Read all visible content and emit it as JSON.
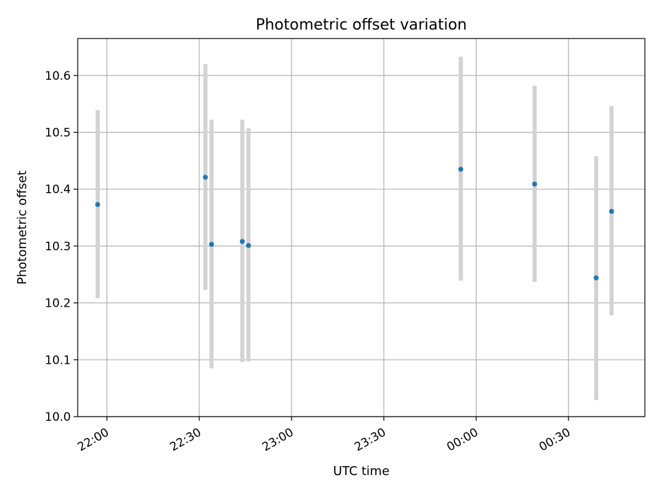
{
  "chart_data": {
    "type": "scatter",
    "title": "Photometric offset variation",
    "xlabel": "UTC time",
    "ylabel": "Photometric offset",
    "ylim": [
      10.0,
      10.665
    ],
    "xlim": [
      "21:50:30",
      "24:54:50"
    ],
    "grid": true,
    "x_ticks": [
      {
        "value": "22:00",
        "label": "22:00"
      },
      {
        "value": "22:30",
        "label": "22:30"
      },
      {
        "value": "23:00",
        "label": "23:00"
      },
      {
        "value": "23:30",
        "label": "23:30"
      },
      {
        "value": "24:00",
        "label": "00:00"
      },
      {
        "value": "24:30",
        "label": "00:30"
      }
    ],
    "y_ticks": [
      "10.0",
      "10.1",
      "10.2",
      "10.3",
      "10.4",
      "10.5",
      "10.6"
    ],
    "points": [
      {
        "x": "21:57",
        "y": 10.373,
        "err_low": 10.208,
        "err_high": 10.539
      },
      {
        "x": "22:32",
        "y": 10.421,
        "err_low": 10.223,
        "err_high": 10.62
      },
      {
        "x": "22:34",
        "y": 10.303,
        "err_low": 10.085,
        "err_high": 10.522
      },
      {
        "x": "22:44",
        "y": 10.308,
        "err_low": 10.096,
        "err_high": 10.522
      },
      {
        "x": "22:46",
        "y": 10.301,
        "err_low": 10.097,
        "err_high": 10.507
      },
      {
        "x": "23:55",
        "y": 10.435,
        "err_low": 10.239,
        "err_high": 10.633
      },
      {
        "x": "24:19",
        "y": 10.409,
        "err_low": 10.237,
        "err_high": 10.582
      },
      {
        "x": "24:39",
        "y": 10.244,
        "err_low": 10.029,
        "err_high": 10.458
      },
      {
        "x": "24:44",
        "y": 10.361,
        "err_low": 10.178,
        "err_high": 10.546
      }
    ],
    "colors": {
      "point": "#1f77b4",
      "errorbar": "#d3d3d3",
      "grid": "#b0b0b0",
      "axis": "#000000"
    }
  }
}
